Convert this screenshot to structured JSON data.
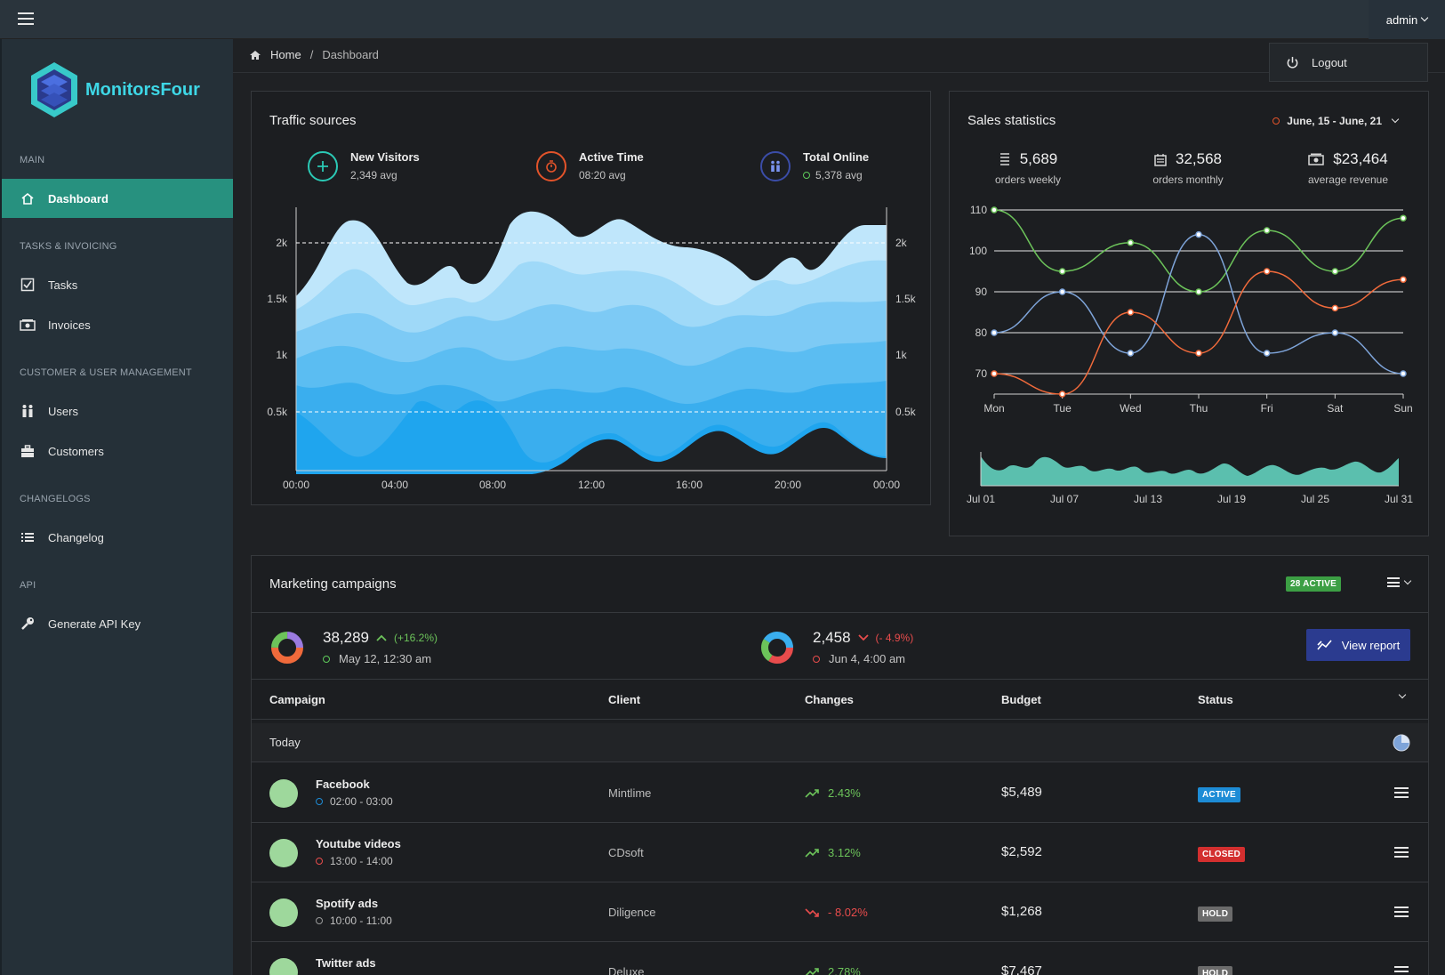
{
  "topbar": {
    "user": "admin"
  },
  "dropdown": {
    "logout": "Logout"
  },
  "brand": {
    "name": "MonitorsFour"
  },
  "sidebar": {
    "sections": [
      "MAIN",
      "TASKS & INVOICING",
      "CUSTOMER & USER MANAGEMENT",
      "CHANGELOGS",
      "API"
    ],
    "items": [
      {
        "label": "Dashboard",
        "icon": "home-icon"
      },
      {
        "label": "Tasks",
        "icon": "checkbox-icon"
      },
      {
        "label": "Invoices",
        "icon": "money-icon"
      },
      {
        "label": "Users",
        "icon": "users-icon"
      },
      {
        "label": "Customers",
        "icon": "briefcase-icon"
      },
      {
        "label": "Changelog",
        "icon": "list-icon"
      },
      {
        "label": "Generate API Key",
        "icon": "key-icon"
      }
    ]
  },
  "breadcrumb": {
    "home": "Home",
    "sep": "/",
    "current": "Dashboard"
  },
  "traffic": {
    "title": "Traffic sources",
    "stats": [
      {
        "label": "New Visitors",
        "value": "2,349 avg"
      },
      {
        "label": "Active Time",
        "value": "08:20 avg"
      },
      {
        "label": "Total Online",
        "value": "5,378 avg"
      }
    ],
    "y_ticks": [
      "2k",
      "1.5k",
      "1k",
      "0.5k"
    ],
    "x_ticks": [
      "00:00",
      "04:00",
      "08:00",
      "12:00",
      "16:00",
      "20:00",
      "00:00"
    ]
  },
  "sales": {
    "title": "Sales statistics",
    "range": "June, 15 - June, 21",
    "stats": [
      {
        "value": "5,689",
        "caption": "orders weekly"
      },
      {
        "value": "32,568",
        "caption": "orders monthly"
      },
      {
        "value": "$23,464",
        "caption": "average revenue"
      }
    ],
    "mini_x_ticks": [
      "Jul 01",
      "Jul 07",
      "Jul 13",
      "Jul 19",
      "Jul 25",
      "Jul 31"
    ]
  },
  "chart_data": {
    "type": "line",
    "categories": [
      "Mon",
      "Tue",
      "Wed",
      "Thu",
      "Fri",
      "Sat",
      "Sun"
    ],
    "y_ticks": [
      "110",
      "100",
      "90",
      "80",
      "70"
    ],
    "ylim": [
      65,
      110
    ],
    "series": [
      {
        "color": "#6cc35a",
        "values": [
          110,
          95,
          102,
          90,
          105,
          95,
          108
        ]
      },
      {
        "color": "#7ea4d9",
        "values": [
          80,
          90,
          75,
          104,
          75,
          80,
          70
        ]
      },
      {
        "color": "#f06a3b",
        "values": [
          70,
          65,
          85,
          75,
          95,
          86,
          93
        ]
      }
    ]
  },
  "marketing": {
    "title": "Marketing campaigns",
    "badge": "28 ACTIVE",
    "summary": [
      {
        "value": "38,289",
        "change": "(+16.2%)",
        "when": "May 12, 12:30 am"
      },
      {
        "value": "2,458",
        "change": "(- 4.9%)",
        "when": "Jun 4, 4:00 am"
      }
    ],
    "view_report": "View report",
    "columns": [
      "Campaign",
      "Client",
      "Changes",
      "Budget",
      "Status"
    ],
    "group": "Today",
    "rows": [
      {
        "name": "Facebook",
        "time": "02:00 - 03:00",
        "client": "Mintlime",
        "change": "2.43%",
        "budget": "$5,489",
        "status": "ACTIVE"
      },
      {
        "name": "Youtube videos",
        "time": "13:00 - 14:00",
        "client": "CDsoft",
        "change": "3.12%",
        "budget": "$2,592",
        "status": "CLOSED"
      },
      {
        "name": "Spotify ads",
        "time": "10:00 - 11:00",
        "client": "Diligence",
        "change": "- 8.02%",
        "budget": "$1,268",
        "status": "HOLD"
      },
      {
        "name": "Twitter ads",
        "time": "",
        "client": "Deluxe",
        "change": "2.78%",
        "budget": "$7,467",
        "status": "HOLD"
      }
    ]
  }
}
